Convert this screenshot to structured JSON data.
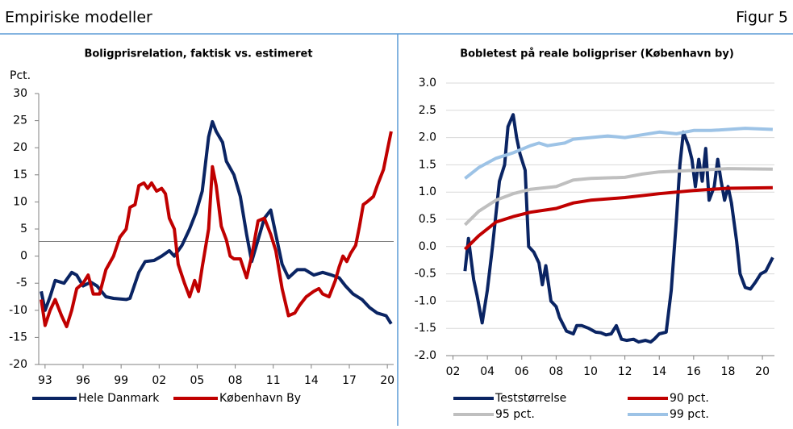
{
  "header": {
    "title": "Empiriske modeller",
    "figure": "Figur 5"
  },
  "chart_data": [
    {
      "type": "line",
      "title": "Boligprisrelation, faktisk vs. estimeret",
      "y_unit": "Pct.",
      "xlim": [
        1992.5,
        2020.5
      ],
      "ylim": [
        -20,
        30
      ],
      "xticks": [
        {
          "value": 1993,
          "label": "93"
        },
        {
          "value": 1996,
          "label": "96"
        },
        {
          "value": 1999,
          "label": "99"
        },
        {
          "value": 2002,
          "label": "02"
        },
        {
          "value": 2005,
          "label": "05"
        },
        {
          "value": 2008,
          "label": "08"
        },
        {
          "value": 2011,
          "label": "11"
        },
        {
          "value": 2014,
          "label": "14"
        },
        {
          "value": 2017,
          "label": "17"
        },
        {
          "value": 2020,
          "label": "20"
        }
      ],
      "yticks": [
        -20,
        -15,
        -10,
        -5,
        0,
        5,
        10,
        15,
        20,
        25,
        30
      ],
      "grid": false,
      "reference_line": 2.7,
      "series": [
        {
          "name": "Hele Danmark",
          "color": "#0a2463",
          "x": [
            1992.7,
            1993.0,
            1993.4,
            1993.8,
            1994.5,
            1995.1,
            1995.5,
            1996.0,
            1996.6,
            1997.1,
            1997.8,
            1998.4,
            1999.4,
            1999.7,
            2000.4,
            2000.9,
            2001.6,
            2002.2,
            2002.8,
            2003.2,
            2003.8,
            2004.4,
            2004.9,
            2005.4,
            2005.9,
            2006.2,
            2006.5,
            2007.0,
            2007.3,
            2007.9,
            2008.4,
            2008.9,
            2009.3,
            2009.8,
            2010.3,
            2010.8,
            2011.2,
            2011.7,
            2012.2,
            2012.9,
            2013.5,
            2014.2,
            2014.9,
            2015.6,
            2016.2,
            2016.7,
            2017.3,
            2018.0,
            2018.6,
            2019.2,
            2019.9,
            2020.3
          ],
          "values": [
            -6.5,
            -10,
            -7.5,
            -4.5,
            -5,
            -3,
            -3.5,
            -5.5,
            -4.8,
            -5.5,
            -7.5,
            -7.8,
            -8,
            -7.8,
            -3,
            -1,
            -0.8,
            0,
            1,
            0,
            2,
            5,
            8,
            12,
            22,
            24.8,
            23,
            21,
            17.5,
            15,
            11,
            4,
            -1,
            3,
            7,
            8.5,
            4,
            -1.5,
            -4,
            -2.5,
            -2.5,
            -3.5,
            -3,
            -3.5,
            -4,
            -5.5,
            -7,
            -8,
            -9.5,
            -10.5,
            -11,
            -12.5
          ]
        },
        {
          "name": "København By",
          "color": "#c00000",
          "x": [
            1992.7,
            1993.0,
            1993.4,
            1993.8,
            1994.3,
            1994.7,
            1995.1,
            1995.5,
            1996.0,
            1996.4,
            1996.8,
            1997.3,
            1997.8,
            1998.4,
            1998.9,
            1999.4,
            1999.7,
            2000.1,
            2000.4,
            2000.8,
            2001.1,
            2001.4,
            2001.8,
            2002.2,
            2002.5,
            2002.8,
            2003.2,
            2003.5,
            2004.0,
            2004.4,
            2004.8,
            2005.1,
            2005.4,
            2005.9,
            2006.2,
            2006.5,
            2006.9,
            2007.3,
            2007.6,
            2007.9,
            2008.4,
            2008.9,
            2009.3,
            2009.8,
            2010.3,
            2010.8,
            2011.2,
            2011.7,
            2012.2,
            2012.7,
            2013.1,
            2013.6,
            2014.2,
            2014.6,
            2014.9,
            2015.4,
            2015.9,
            2016.2,
            2016.5,
            2016.8,
            2017.1,
            2017.5,
            2017.8,
            2018.1,
            2018.4,
            2018.9,
            2019.2,
            2019.7,
            2020.0,
            2020.3
          ],
          "values": [
            -8,
            -12.8,
            -10,
            -8,
            -11,
            -13,
            -10,
            -6,
            -5,
            -3.5,
            -7,
            -7,
            -2.5,
            0,
            3.5,
            5,
            9,
            9.5,
            13,
            13.5,
            12.5,
            13.5,
            12,
            12.5,
            11.5,
            7,
            5,
            -1.5,
            -5,
            -7.5,
            -4.5,
            -6.5,
            -2,
            5,
            16.5,
            13,
            5.5,
            3,
            0,
            -0.5,
            -0.5,
            -4,
            0,
            6.5,
            7,
            4,
            1,
            -6,
            -11,
            -10.5,
            -9,
            -7.5,
            -6.5,
            -6,
            -7,
            -7.5,
            -4.5,
            -2,
            0,
            -1,
            0.5,
            2,
            5.5,
            9.5,
            10,
            11,
            13,
            16,
            19.5,
            23
          ]
        }
      ]
    },
    {
      "type": "line",
      "title": "Bobletest på reale boligpriser (København by)",
      "xlim": [
        2001.6,
        2020.7
      ],
      "ylim": [
        -2,
        3
      ],
      "xticks": [
        {
          "value": 2002,
          "label": "02"
        },
        {
          "value": 2004,
          "label": "04"
        },
        {
          "value": 2006,
          "label": "06"
        },
        {
          "value": 2008,
          "label": "08"
        },
        {
          "value": 2010,
          "label": "10"
        },
        {
          "value": 2012,
          "label": "12"
        },
        {
          "value": 2014,
          "label": "14"
        },
        {
          "value": 2016,
          "label": "16"
        },
        {
          "value": 2018,
          "label": "18"
        },
        {
          "value": 2020,
          "label": "20"
        }
      ],
      "yticks": [
        {
          "value": -2,
          "label": "-2.0"
        },
        -1.5,
        {
          "value": -1,
          "label": "-1.0"
        },
        -0.5,
        {
          "value": 0,
          "label": "0.0"
        },
        0.5,
        {
          "value": 1,
          "label": "1.0"
        },
        1.5,
        {
          "value": 2,
          "label": "2.0"
        },
        2.5,
        {
          "value": 3,
          "label": "3.0"
        }
      ],
      "grid": true,
      "series": [
        {
          "name": "Teststørrelse",
          "color": "#0a2463",
          "x": [
            2002.7,
            2002.9,
            2003.2,
            2003.4,
            2003.7,
            2004.0,
            2004.3,
            2004.7,
            2005.0,
            2005.2,
            2005.5,
            2005.7,
            2005.9,
            2006.2,
            2006.4,
            2006.7,
            2007.0,
            2007.2,
            2007.4,
            2007.7,
            2008.0,
            2008.2,
            2008.6,
            2009.0,
            2009.2,
            2009.5,
            2009.9,
            2010.3,
            2010.6,
            2010.9,
            2011.2,
            2011.5,
            2011.8,
            2012.1,
            2012.5,
            2012.8,
            2013.2,
            2013.5,
            2013.7,
            2014.0,
            2014.4,
            2014.7,
            2015.0,
            2015.2,
            2015.4,
            2015.7,
            2015.9,
            2016.1,
            2016.3,
            2016.5,
            2016.7,
            2016.9,
            2017.2,
            2017.4,
            2017.6,
            2017.8,
            2018.0,
            2018.2,
            2018.5,
            2018.7,
            2019.0,
            2019.3,
            2019.6,
            2019.9,
            2020.2,
            2020.6
          ],
          "values": [
            -0.45,
            0.15,
            -0.6,
            -0.9,
            -1.4,
            -0.8,
            0,
            1.2,
            1.5,
            2.2,
            2.42,
            2,
            1.7,
            1.4,
            0,
            -0.1,
            -0.3,
            -0.7,
            -0.35,
            -1,
            -1.1,
            -1.3,
            -1.55,
            -1.6,
            -1.45,
            -1.45,
            -1.5,
            -1.57,
            -1.58,
            -1.62,
            -1.6,
            -1.45,
            -1.7,
            -1.72,
            -1.7,
            -1.75,
            -1.72,
            -1.75,
            -1.7,
            -1.6,
            -1.57,
            -0.8,
            0.5,
            1.5,
            2.1,
            1.85,
            1.6,
            1.1,
            1.6,
            1.2,
            1.8,
            0.85,
            1.1,
            1.6,
            1.2,
            0.85,
            1.1,
            0.8,
            0.1,
            -0.5,
            -0.75,
            -0.78,
            -0.65,
            -0.5,
            -0.45,
            -0.2
          ]
        },
        {
          "name": "90 pct.",
          "color": "#c00000",
          "x": [
            2002.7,
            2003.5,
            2004.5,
            2005.5,
            2006.5,
            2008,
            2009,
            2010,
            2012,
            2014,
            2016,
            2018,
            2020.6
          ],
          "values": [
            -0.05,
            0.2,
            0.45,
            0.55,
            0.63,
            0.7,
            0.8,
            0.85,
            0.9,
            0.97,
            1.03,
            1.07,
            1.08
          ]
        },
        {
          "name": "95 pct.",
          "color": "#bfbfbf",
          "x": [
            2002.7,
            2003.5,
            2004.5,
            2005.5,
            2006.5,
            2008,
            2009,
            2010,
            2012,
            2013,
            2014,
            2016,
            2018,
            2020.6
          ],
          "values": [
            0.4,
            0.65,
            0.85,
            0.97,
            1.05,
            1.1,
            1.22,
            1.25,
            1.27,
            1.33,
            1.37,
            1.4,
            1.43,
            1.42
          ]
        },
        {
          "name": "99 pct.",
          "color": "#9dc3e6",
          "x": [
            2002.7,
            2003.5,
            2004.5,
            2005.5,
            2006.5,
            2007,
            2007.5,
            2008.5,
            2009,
            2010,
            2011,
            2012,
            2013,
            2014,
            2015,
            2016,
            2017,
            2018,
            2019,
            2020.6
          ],
          "values": [
            1.25,
            1.45,
            1.62,
            1.72,
            1.85,
            1.9,
            1.85,
            1.9,
            1.97,
            2,
            2.03,
            2,
            2.05,
            2.1,
            2.07,
            2.13,
            2.13,
            2.15,
            2.17,
            2.15
          ]
        }
      ]
    }
  ]
}
